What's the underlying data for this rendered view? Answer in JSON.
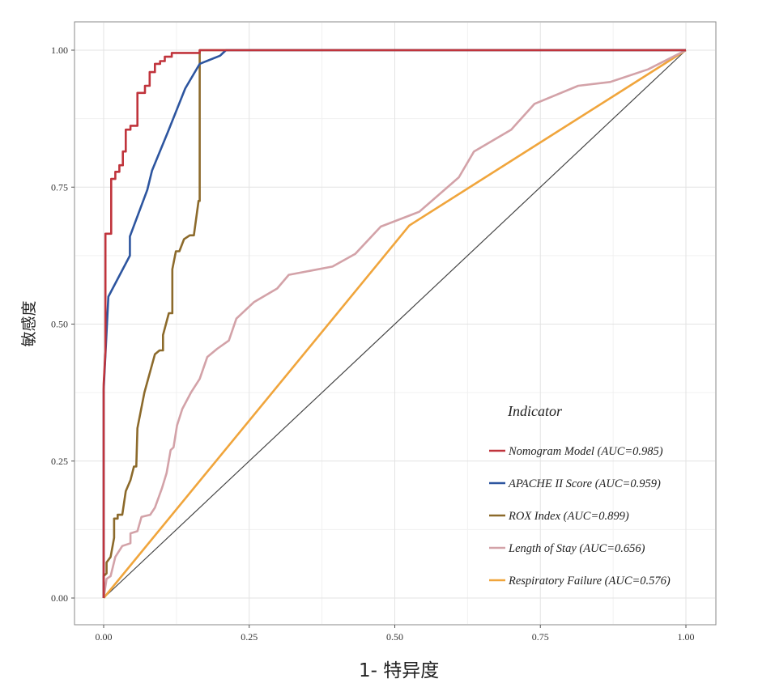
{
  "chart_data": {
    "type": "line",
    "title": "",
    "xlabel": "1- 特异度",
    "ylabel": "敏感度",
    "xlim": [
      0,
      1
    ],
    "ylim": [
      0,
      1
    ],
    "x_ticks": [
      "0.00",
      "0.25",
      "0.50",
      "0.75",
      "1.00"
    ],
    "y_ticks": [
      "0.00",
      "0.25",
      "0.50",
      "0.75",
      "1.00"
    ],
    "grid": true,
    "legend": {
      "title": "Indicator",
      "position": "bottom-right"
    },
    "series": [
      {
        "name": "Nomogram Model (AUC=0.985)",
        "color": "#c0343c",
        "points": [
          [
            0,
            0
          ],
          [
            0,
            0.39
          ],
          [
            0.003,
            0.45
          ],
          [
            0.003,
            0.665
          ],
          [
            0.013,
            0.665
          ],
          [
            0.013,
            0.765
          ],
          [
            0.02,
            0.765
          ],
          [
            0.02,
            0.778
          ],
          [
            0.027,
            0.778
          ],
          [
            0.027,
            0.79
          ],
          [
            0.033,
            0.79
          ],
          [
            0.033,
            0.815
          ],
          [
            0.038,
            0.815
          ],
          [
            0.038,
            0.855
          ],
          [
            0.046,
            0.855
          ],
          [
            0.046,
            0.862
          ],
          [
            0.058,
            0.862
          ],
          [
            0.058,
            0.922
          ],
          [
            0.071,
            0.922
          ],
          [
            0.071,
            0.935
          ],
          [
            0.079,
            0.935
          ],
          [
            0.079,
            0.96
          ],
          [
            0.088,
            0.96
          ],
          [
            0.088,
            0.975
          ],
          [
            0.097,
            0.975
          ],
          [
            0.097,
            0.98
          ],
          [
            0.105,
            0.98
          ],
          [
            0.105,
            0.988
          ],
          [
            0.117,
            0.988
          ],
          [
            0.117,
            0.995
          ],
          [
            0.165,
            0.995
          ],
          [
            0.165,
            1.0
          ],
          [
            1.0,
            1.0
          ]
        ]
      },
      {
        "name": "APACHE II Score (AUC=0.959)",
        "color": "#2d559f",
        "points": [
          [
            0,
            0
          ],
          [
            0,
            0.38
          ],
          [
            0.008,
            0.55
          ],
          [
            0.045,
            0.625
          ],
          [
            0.045,
            0.66
          ],
          [
            0.075,
            0.745
          ],
          [
            0.083,
            0.78
          ],
          [
            0.11,
            0.85
          ],
          [
            0.14,
            0.93
          ],
          [
            0.165,
            0.975
          ],
          [
            0.2,
            0.99
          ],
          [
            0.21,
            1.0
          ],
          [
            1.0,
            1.0
          ]
        ]
      },
      {
        "name": "ROX Index (AUC=0.899)",
        "color": "#8c6a2b",
        "points": [
          [
            0,
            0
          ],
          [
            0,
            0.04
          ],
          [
            0.005,
            0.045
          ],
          [
            0.005,
            0.065
          ],
          [
            0.012,
            0.075
          ],
          [
            0.018,
            0.11
          ],
          [
            0.018,
            0.145
          ],
          [
            0.024,
            0.145
          ],
          [
            0.024,
            0.152
          ],
          [
            0.032,
            0.152
          ],
          [
            0.038,
            0.195
          ],
          [
            0.046,
            0.215
          ],
          [
            0.052,
            0.24
          ],
          [
            0.056,
            0.24
          ],
          [
            0.058,
            0.31
          ],
          [
            0.07,
            0.375
          ],
          [
            0.088,
            0.445
          ],
          [
            0.096,
            0.452
          ],
          [
            0.102,
            0.452
          ],
          [
            0.102,
            0.48
          ],
          [
            0.112,
            0.52
          ],
          [
            0.118,
            0.52
          ],
          [
            0.118,
            0.6
          ],
          [
            0.124,
            0.633
          ],
          [
            0.13,
            0.633
          ],
          [
            0.138,
            0.655
          ],
          [
            0.148,
            0.662
          ],
          [
            0.155,
            0.662
          ],
          [
            0.163,
            0.725
          ],
          [
            0.165,
            0.725
          ],
          [
            0.165,
            1.0
          ],
          [
            1.0,
            1.0
          ]
        ]
      },
      {
        "name": "Length of Stay (AUC=0.656)",
        "color": "#d3a2a8",
        "points": [
          [
            0,
            0
          ],
          [
            0.005,
            0.035
          ],
          [
            0.012,
            0.04
          ],
          [
            0.02,
            0.075
          ],
          [
            0.032,
            0.095
          ],
          [
            0.046,
            0.1
          ],
          [
            0.046,
            0.118
          ],
          [
            0.058,
            0.122
          ],
          [
            0.065,
            0.148
          ],
          [
            0.08,
            0.152
          ],
          [
            0.088,
            0.165
          ],
          [
            0.1,
            0.2
          ],
          [
            0.108,
            0.228
          ],
          [
            0.115,
            0.27
          ],
          [
            0.12,
            0.275
          ],
          [
            0.126,
            0.315
          ],
          [
            0.135,
            0.345
          ],
          [
            0.15,
            0.375
          ],
          [
            0.165,
            0.4
          ],
          [
            0.178,
            0.44
          ],
          [
            0.195,
            0.455
          ],
          [
            0.215,
            0.47
          ],
          [
            0.228,
            0.51
          ],
          [
            0.258,
            0.54
          ],
          [
            0.298,
            0.565
          ],
          [
            0.318,
            0.59
          ],
          [
            0.393,
            0.605
          ],
          [
            0.432,
            0.628
          ],
          [
            0.476,
            0.678
          ],
          [
            0.542,
            0.705
          ],
          [
            0.61,
            0.768
          ],
          [
            0.636,
            0.815
          ],
          [
            0.7,
            0.855
          ],
          [
            0.74,
            0.902
          ],
          [
            0.815,
            0.935
          ],
          [
            0.87,
            0.942
          ],
          [
            0.935,
            0.965
          ],
          [
            1.0,
            1.0
          ]
        ]
      },
      {
        "name": "Respiratory Failure (AUC=0.576)",
        "color": "#f0a53c",
        "points": [
          [
            0,
            0
          ],
          [
            0.525,
            0.68
          ],
          [
            1.0,
            1.0
          ]
        ]
      }
    ],
    "reference_line": {
      "color": "#444444",
      "points": [
        [
          0,
          0
        ],
        [
          1,
          1
        ]
      ]
    }
  }
}
